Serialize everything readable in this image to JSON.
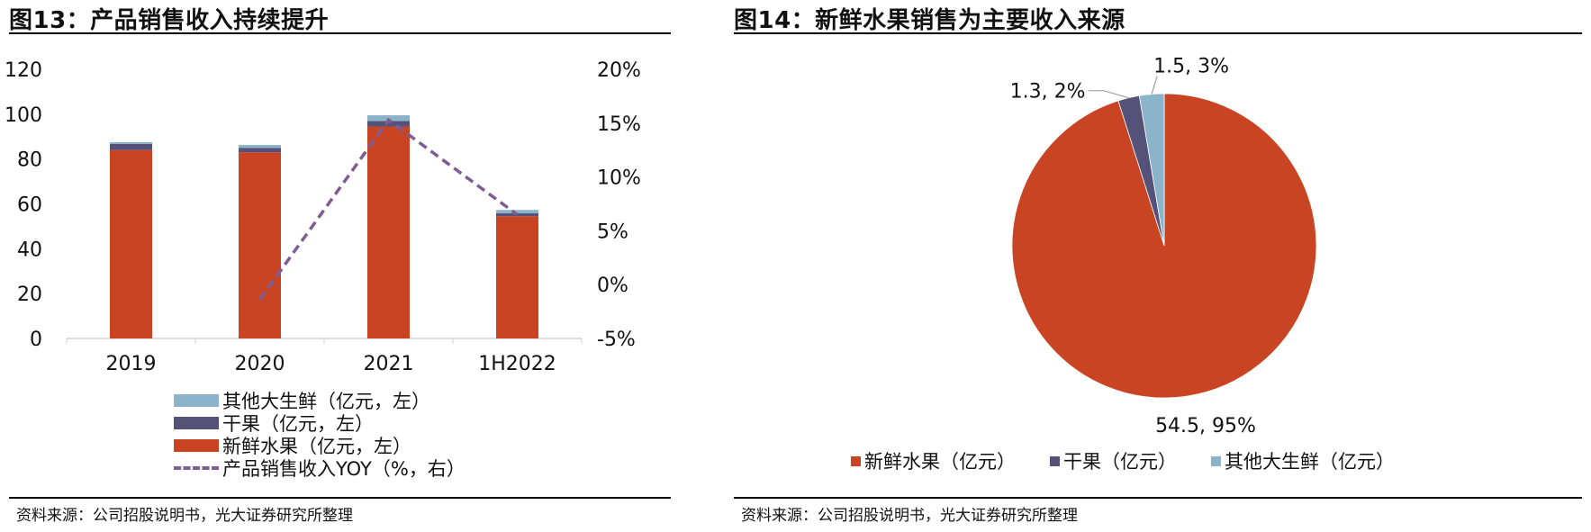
{
  "left": {
    "title": "图13：产品销售收入持续提升",
    "source": "资料来源：公司招股说明书，光大证券研究所整理",
    "legend": [
      {
        "label": "其他大生鲜（亿元，左）",
        "color": "#8bb3c9",
        "style": "bar"
      },
      {
        "label": "干果（亿元，左）",
        "color": "#55527a",
        "style": "bar"
      },
      {
        "label": "新鲜水果（亿元，左）",
        "color": "#c94423",
        "style": "bar"
      },
      {
        "label": "产品销售收入YOY（%，右）",
        "color": "#7e5c94",
        "style": "dashed-line"
      }
    ],
    "y_left_ticks": [
      "0",
      "20",
      "40",
      "60",
      "80",
      "100",
      "120"
    ],
    "y_right_ticks": [
      "-5%",
      "0%",
      "5%",
      "10%",
      "15%",
      "20%"
    ],
    "x_ticks": [
      "2019",
      "2020",
      "2021",
      "1H2022"
    ]
  },
  "right": {
    "title": "图14：新鲜水果销售为主要收入来源",
    "source": "资料来源：公司招股说明书，光大证券研究所整理",
    "labels": {
      "fresh": "54.5, 95%",
      "dried": "1.3, 2%",
      "other": "1.5, 3%"
    },
    "legend": [
      {
        "label": "新鲜水果（亿元）",
        "color": "#c94423"
      },
      {
        "label": "干果（亿元）",
        "color": "#55527a"
      },
      {
        "label": "其他大生鲜（亿元）",
        "color": "#8bb3c9"
      }
    ]
  },
  "chart_data": [
    {
      "type": "bar",
      "title": "图13：产品销售收入持续提升",
      "stacked": true,
      "categories": [
        "2019",
        "2020",
        "2021",
        "1H2022"
      ],
      "series": [
        {
          "name": "新鲜水果（亿元，左）",
          "axis": "left",
          "values": [
            84.0,
            83.0,
            94.5,
            54.5
          ]
        },
        {
          "name": "干果（亿元，左）",
          "axis": "left",
          "values": [
            2.7,
            2.0,
            2.5,
            1.3
          ]
        },
        {
          "name": "其他大生鲜（亿元，左）",
          "axis": "left",
          "values": [
            0.8,
            1.3,
            2.5,
            1.5
          ]
        },
        {
          "name": "产品销售收入YOY（%，右）",
          "axis": "right",
          "type": "line",
          "style": "dashed",
          "values": [
            null,
            -1.4,
            15.3,
            6.5
          ]
        }
      ],
      "ylim_left": [
        0,
        120
      ],
      "ylim_right": [
        -5,
        20
      ],
      "xlabel": "",
      "ylabel": "",
      "grid": false,
      "legend_position": "bottom"
    },
    {
      "type": "pie",
      "title": "图14：新鲜水果销售为主要收入来源",
      "categories": [
        "新鲜水果（亿元）",
        "干果（亿元）",
        "其他大生鲜（亿元）"
      ],
      "values": [
        54.5,
        1.3,
        1.5
      ],
      "percent": [
        95,
        2,
        3
      ],
      "data_labels": [
        "54.5, 95%",
        "1.3, 2%",
        "1.5, 3%"
      ],
      "legend_position": "bottom"
    }
  ]
}
